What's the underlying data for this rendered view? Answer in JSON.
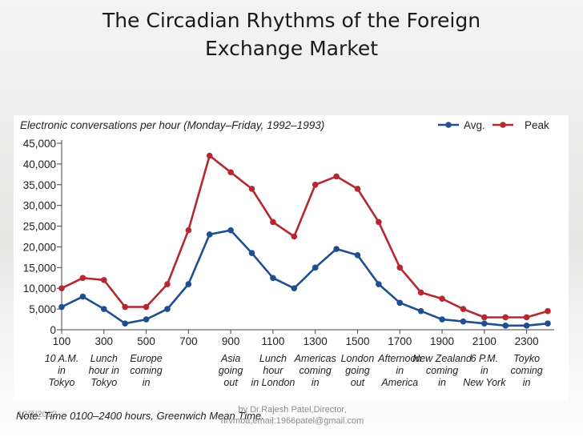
{
  "slide": {
    "title_line1": "The Circadian Rhythms of the Foreign",
    "title_line2": "Exchange Market",
    "note": "Note: Time 0100–2400 hours, Greenwich Mean Time.",
    "footer_date": "12/7/2012",
    "footer_credit_line1": "by Dr.Rajesh Patel,Director,",
    "footer_credit_line2": "nrvmba,email:1966patel@gmail.com"
  },
  "colors": {
    "avg": "#1f4e91",
    "peak": "#b5282f",
    "axis": "#444444"
  },
  "chart_data": {
    "type": "line",
    "subtitle": "Electronic conversations per hour (Monday–Friday, 1992–1993)",
    "x": [
      100,
      200,
      300,
      400,
      500,
      600,
      700,
      800,
      900,
      1000,
      1100,
      1200,
      1300,
      1400,
      1500,
      1600,
      1700,
      1800,
      1900,
      2000,
      2100,
      2200,
      2300,
      2400
    ],
    "xticks": [
      "100",
      "300",
      "500",
      "700",
      "900",
      "1100",
      "1300",
      "1500",
      "1700",
      "1900",
      "2100",
      "2300"
    ],
    "xtick_values": [
      100,
      300,
      500,
      700,
      900,
      1100,
      1300,
      1500,
      1700,
      1900,
      2100,
      2300
    ],
    "yticks": [
      "0",
      "5,000",
      "10,000",
      "15,000",
      "20,000",
      "25,000",
      "30,000",
      "35,000",
      "40,000",
      "45,000"
    ],
    "ytick_values": [
      0,
      5000,
      10000,
      15000,
      20000,
      25000,
      30000,
      35000,
      40000,
      45000
    ],
    "ylim": [
      0,
      45000
    ],
    "xlim": [
      100,
      2400
    ],
    "legend_position": "top-right",
    "series": [
      {
        "name": "Avg.",
        "values": [
          5500,
          8000,
          5000,
          1500,
          2500,
          5000,
          11000,
          23000,
          24000,
          18500,
          12500,
          10000,
          15000,
          19500,
          18000,
          11000,
          6500,
          4500,
          2500,
          2000,
          1500,
          1000,
          1000,
          1500
        ]
      },
      {
        "name": "Peak",
        "values": [
          10000,
          12500,
          12000,
          5500,
          5500,
          11000,
          24000,
          42000,
          38000,
          34000,
          26000,
          22500,
          35000,
          37000,
          34000,
          26000,
          15000,
          9000,
          7500,
          5000,
          3000,
          3000,
          3000,
          4500
        ]
      }
    ],
    "annotations": [
      {
        "x": 100,
        "lines": [
          "10 A.M.",
          "in",
          "Tokyo"
        ]
      },
      {
        "x": 300,
        "lines": [
          "Lunch",
          "hour in",
          "Tokyo"
        ]
      },
      {
        "x": 500,
        "lines": [
          "Europe",
          "coming",
          "in"
        ]
      },
      {
        "x": 900,
        "lines": [
          "Asia",
          "going",
          "out"
        ]
      },
      {
        "x": 1100,
        "lines": [
          "Lunch",
          "hour",
          "in London"
        ]
      },
      {
        "x": 1300,
        "lines": [
          "Americas",
          "coming",
          "in"
        ]
      },
      {
        "x": 1500,
        "lines": [
          "London",
          "going",
          "out"
        ]
      },
      {
        "x": 1700,
        "lines": [
          "Afternoon",
          "in",
          "America"
        ]
      },
      {
        "x": 1900,
        "lines": [
          "New Zealand",
          "coming",
          "in"
        ]
      },
      {
        "x": 2100,
        "lines": [
          "6 P.M.",
          "in",
          "New York"
        ]
      },
      {
        "x": 2300,
        "lines": [
          "Toyko",
          "coming",
          "in"
        ]
      }
    ]
  }
}
